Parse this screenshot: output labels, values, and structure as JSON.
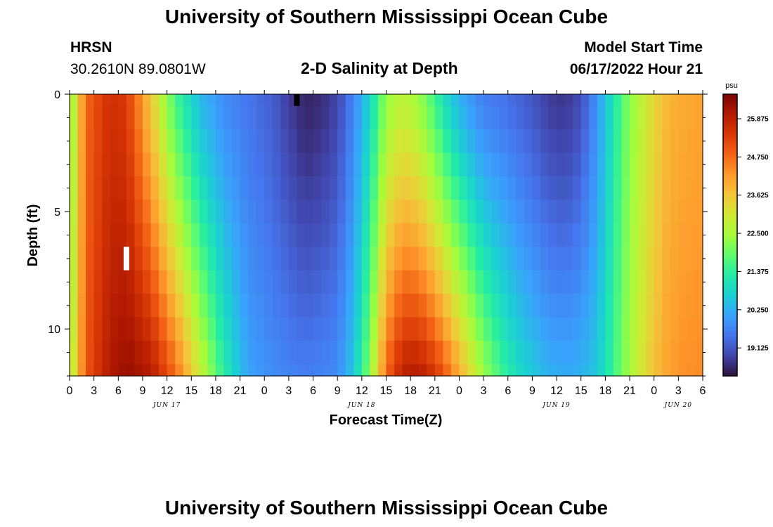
{
  "page": {
    "title": "University of Southern Mississippi Ocean Cube",
    "station": "HRSN",
    "coords": "30.2610N  89.0801W",
    "subtitle": "2-D Salinity at Depth",
    "model_start_label": "Model Start Time",
    "model_start_value": "06/17/2022 Hour 21",
    "footer_title": "University of Southern Mississippi Ocean Cube"
  },
  "chart_data": {
    "type": "heatmap",
    "title": "2-D Salinity at Depth",
    "xlabel": "Forecast Time(Z)",
    "ylabel": "Depth (ft)",
    "colorbar_unit": "psu",
    "colorbar_ticks": [
      "19.125",
      "20.250",
      "21.375",
      "22.500",
      "23.625",
      "24.750",
      "25.875"
    ],
    "colorbar_range": [
      18.3,
      26.6
    ],
    "x_tick_labels": [
      "0",
      "3",
      "6",
      "9",
      "12",
      "15",
      "18",
      "21",
      "0",
      "3",
      "6",
      "9",
      "12",
      "15",
      "18",
      "21",
      "0",
      "3",
      "6",
      "9",
      "12",
      "15",
      "18",
      "21",
      "0",
      "3",
      "6"
    ],
    "x_range_hours": [
      0,
      78
    ],
    "date_labels": [
      {
        "text": "JUN 17",
        "hour": 12
      },
      {
        "text": "JUN 18",
        "hour": 36
      },
      {
        "text": "JUN 19",
        "hour": 60
      },
      {
        "text": "JUN 20",
        "hour": 75
      }
    ],
    "y_tick_labels": [
      "0",
      "5",
      "10"
    ],
    "y_tick_values": [
      0,
      5,
      10
    ],
    "y_range_ft": [
      0,
      12
    ],
    "depth_levels_ft": [
      0.0,
      0.5,
      1.5,
      2.5,
      3.5,
      4.5,
      5.5,
      6.5,
      7.5,
      8.5,
      9.5,
      10.5,
      11.5,
      12.0
    ],
    "time_hours_start": 0,
    "time_hours_end": 78,
    "time_step_hours": 1,
    "salinity_profiles_psu": [
      {
        "hour": 0,
        "surface": 22.0,
        "bottom": 22.4
      },
      {
        "hour": 2,
        "surface": 24.8,
        "bottom": 25.0
      },
      {
        "hour": 5,
        "surface": 25.6,
        "bottom": 26.0
      },
      {
        "hour": 7,
        "surface": 25.4,
        "bottom": 26.3
      },
      {
        "hour": 10,
        "surface": 23.6,
        "bottom": 26.0
      },
      {
        "hour": 13,
        "surface": 21.6,
        "bottom": 24.8
      },
      {
        "hour": 16,
        "surface": 20.4,
        "bottom": 23.0
      },
      {
        "hour": 19,
        "surface": 19.8,
        "bottom": 21.3
      },
      {
        "hour": 22,
        "surface": 19.5,
        "bottom": 20.1
      },
      {
        "hour": 25,
        "surface": 19.2,
        "bottom": 19.8
      },
      {
        "hour": 27,
        "surface": 18.8,
        "bottom": 19.7
      },
      {
        "hour": 29,
        "surface": 18.5,
        "bottom": 19.6
      },
      {
        "hour": 31,
        "surface": 18.6,
        "bottom": 19.7
      },
      {
        "hour": 33,
        "surface": 18.9,
        "bottom": 19.8
      },
      {
        "hour": 35,
        "surface": 19.7,
        "bottom": 20.6
      },
      {
        "hour": 37,
        "surface": 20.8,
        "bottom": 22.2
      },
      {
        "hour": 39,
        "surface": 22.3,
        "bottom": 24.8
      },
      {
        "hour": 41,
        "surface": 22.8,
        "bottom": 25.9
      },
      {
        "hour": 43,
        "surface": 22.4,
        "bottom": 26.0
      },
      {
        "hour": 45,
        "surface": 21.5,
        "bottom": 25.5
      },
      {
        "hour": 47,
        "surface": 20.6,
        "bottom": 24.6
      },
      {
        "hour": 49,
        "surface": 20.0,
        "bottom": 23.5
      },
      {
        "hour": 51,
        "surface": 19.6,
        "bottom": 22.4
      },
      {
        "hour": 53,
        "surface": 19.5,
        "bottom": 21.6
      },
      {
        "hour": 55,
        "surface": 19.3,
        "bottom": 21.0
      },
      {
        "hour": 57,
        "surface": 19.1,
        "bottom": 20.6
      },
      {
        "hour": 59,
        "surface": 18.8,
        "bottom": 20.3
      },
      {
        "hour": 61,
        "surface": 18.7,
        "bottom": 20.2
      },
      {
        "hour": 63,
        "surface": 19.0,
        "bottom": 20.3
      },
      {
        "hour": 65,
        "surface": 19.9,
        "bottom": 20.6
      },
      {
        "hour": 67,
        "surface": 21.1,
        "bottom": 21.5
      },
      {
        "hour": 69,
        "surface": 22.2,
        "bottom": 22.5
      },
      {
        "hour": 71,
        "surface": 23.0,
        "bottom": 23.3
      },
      {
        "hour": 73,
        "surface": 23.7,
        "bottom": 24.0
      },
      {
        "hour": 75,
        "surface": 24.0,
        "bottom": 24.3
      },
      {
        "hour": 78,
        "surface": 24.1,
        "bottom": 24.4
      }
    ],
    "markers": [
      {
        "name": "white-marker",
        "hour": 7,
        "depth_top": 6.5,
        "depth_bottom": 7.5,
        "color": "#ffffff"
      },
      {
        "name": "black-marker",
        "hour": 28,
        "depth_top": 0.0,
        "depth_bottom": 0.5,
        "color": "#000000"
      }
    ],
    "colormap": [
      "#30123b",
      "#4145ab",
      "#4675ed",
      "#39a2fc",
      "#1bcfd4",
      "#24eca6",
      "#61fc6c",
      "#a4fc3b",
      "#d1e834",
      "#f3c63a",
      "#fe9b2d",
      "#f36315",
      "#d93806",
      "#b11901",
      "#7a0402"
    ]
  }
}
